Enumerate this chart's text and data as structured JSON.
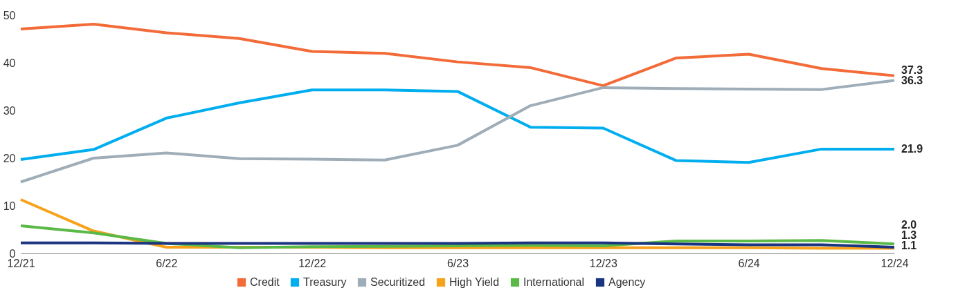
{
  "chart_data": {
    "type": "line",
    "categories": [
      "12/21",
      null,
      "6/22",
      null,
      "12/22",
      null,
      "6/23",
      null,
      "12/23",
      null,
      "6/24",
      null,
      "12/24"
    ],
    "ylim": [
      0,
      50
    ],
    "yticks": [
      0,
      10,
      20,
      30,
      40,
      50
    ],
    "grid": false,
    "legend": "bottom",
    "marker": "none",
    "line_style": "solid",
    "series": [
      {
        "name": "Credit",
        "color": "#f26b38",
        "values": [
          47.1,
          48.1,
          46.3,
          45.1,
          42.4,
          42.0,
          40.2,
          39.0,
          35.2,
          41.0,
          41.8,
          38.8,
          37.3
        ],
        "value_labels": [
          null,
          null,
          null,
          null,
          null,
          null,
          null,
          null,
          null,
          null,
          null,
          null,
          "37.3"
        ]
      },
      {
        "name": "Treasury",
        "color": "#00aeef",
        "values": [
          19.7,
          21.8,
          28.4,
          31.6,
          34.3,
          34.3,
          34.0,
          26.5,
          26.3,
          19.5,
          19.1,
          21.9,
          21.9
        ],
        "value_labels": [
          null,
          null,
          null,
          null,
          null,
          null,
          null,
          null,
          null,
          null,
          null,
          null,
          "21.9"
        ]
      },
      {
        "name": "Securitized",
        "color": "#9eadb8",
        "values": [
          15.0,
          20.0,
          21.1,
          19.9,
          19.8,
          19.6,
          22.7,
          31.0,
          34.8,
          34.6,
          34.5,
          34.4,
          36.3
        ],
        "value_labels": [
          null,
          null,
          null,
          null,
          null,
          null,
          null,
          null,
          null,
          null,
          null,
          null,
          "36.3"
        ]
      },
      {
        "name": "High Yield",
        "color": "#f7a21b",
        "values": [
          11.3,
          4.7,
          1.3,
          1.3,
          1.3,
          1.2,
          1.2,
          1.2,
          1.2,
          1.2,
          1.2,
          1.1,
          1.1
        ],
        "value_labels": [
          null,
          null,
          null,
          null,
          null,
          null,
          null,
          null,
          null,
          null,
          null,
          null,
          "1.1"
        ]
      },
      {
        "name": "International",
        "color": "#5bb947",
        "values": [
          5.8,
          4.3,
          2.1,
          1.2,
          1.4,
          1.5,
          1.6,
          1.7,
          1.6,
          2.6,
          2.6,
          2.7,
          2.0
        ],
        "value_labels": [
          null,
          null,
          null,
          null,
          null,
          null,
          null,
          null,
          null,
          null,
          null,
          null,
          "2.0"
        ]
      },
      {
        "name": "Agency",
        "color": "#1a3480",
        "values": [
          2.2,
          2.2,
          2.1,
          2.1,
          2.1,
          2.1,
          2.1,
          2.2,
          2.2,
          2.0,
          1.8,
          1.8,
          1.3
        ],
        "value_labels": [
          null,
          null,
          null,
          null,
          null,
          null,
          null,
          null,
          null,
          null,
          null,
          null,
          "1.3"
        ]
      }
    ]
  }
}
